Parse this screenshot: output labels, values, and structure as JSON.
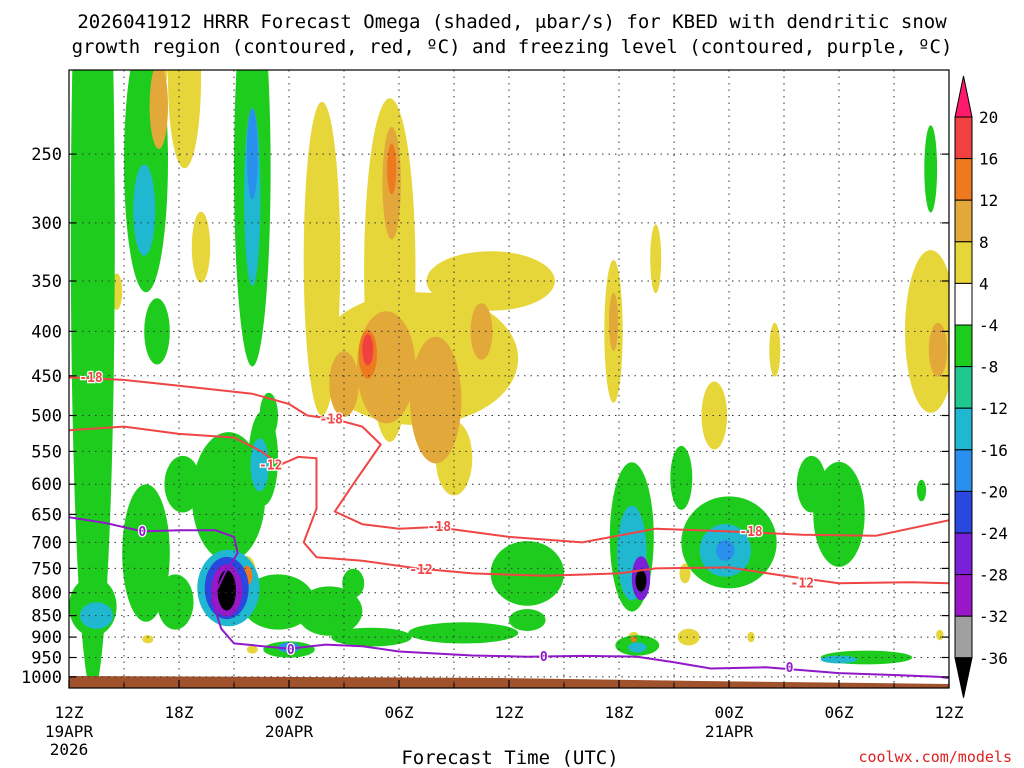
{
  "chart_data": {
    "type": "heatmap",
    "title_line1": "2026041912 HRRR Forecast Omega (shaded, μbar/s) for KBED with dendritic snow",
    "title_line2": "growth region (contoured, red, ºC) and freezing level (contoured, purple, ºC)",
    "xlabel": "Forecast Time (UTC)",
    "credit": "coolwx.com/models",
    "x_range_hours": [
      0,
      48
    ],
    "y_range_hpa": [
      200,
      1030
    ],
    "x_ticks": [
      {
        "h": 0,
        "label": "12Z",
        "sub1": "19APR",
        "sub2": "2026"
      },
      {
        "h": 6,
        "label": "18Z"
      },
      {
        "h": 12,
        "label": "00Z",
        "sub1": "20APR"
      },
      {
        "h": 18,
        "label": "06Z"
      },
      {
        "h": 24,
        "label": "12Z"
      },
      {
        "h": 30,
        "label": "18Z"
      },
      {
        "h": 36,
        "label": "00Z",
        "sub1": "21APR"
      },
      {
        "h": 42,
        "label": "06Z"
      },
      {
        "h": 48,
        "label": "12Z"
      }
    ],
    "y_ticks": [
      250,
      300,
      350,
      400,
      450,
      500,
      550,
      600,
      650,
      700,
      750,
      800,
      850,
      900,
      950,
      1000
    ],
    "colorbar": {
      "labels": [
        "20",
        "16",
        "12",
        "8",
        "4",
        "-4",
        "-8",
        "-12",
        "-16",
        "-20",
        "-24",
        "-28",
        "-32",
        "-36"
      ],
      "colors": [
        "#ff1a6e",
        "#f04040",
        "#ee7a20",
        "#e3a83a",
        "#e6d63a",
        "#ffffff",
        "#1ecc1e",
        "#20c890",
        "#20b8d0",
        "#2a90ee",
        "#2848e0",
        "#7a20d8",
        "#9818c8",
        "#a0a0a0",
        "#000000"
      ]
    },
    "contour_colors": {
      "dgz": "#f04545",
      "freezing": "#9018c8"
    },
    "dgz_contours": [
      {
        "label": "-18",
        "points": [
          [
            0,
            452
          ],
          [
            3,
            455
          ],
          [
            6,
            462
          ],
          [
            10,
            472
          ],
          [
            12,
            485
          ],
          [
            13,
            500
          ],
          [
            14.5,
            505
          ],
          [
            16,
            515
          ],
          [
            17,
            540
          ],
          [
            15.5,
            600
          ],
          [
            14.5,
            645
          ],
          [
            16,
            667
          ],
          [
            18,
            675
          ],
          [
            20,
            672
          ],
          [
            24,
            690
          ],
          [
            28,
            700
          ],
          [
            32,
            675
          ],
          [
            36,
            680
          ],
          [
            40,
            686
          ],
          [
            44,
            688
          ],
          [
            48,
            660
          ]
        ],
        "label_positions": [
          [
            1.2,
            452
          ],
          [
            14.3,
            505
          ],
          [
            20.2,
            671
          ],
          [
            37.2,
            680
          ]
        ]
      },
      {
        "label": "-12",
        "points": [
          [
            0,
            520
          ],
          [
            3,
            515
          ],
          [
            6,
            525
          ],
          [
            9,
            530
          ],
          [
            10.5,
            550
          ],
          [
            11.5,
            570
          ],
          [
            12.5,
            558
          ],
          [
            13.5,
            560
          ],
          [
            13.5,
            640
          ],
          [
            12.8,
            700
          ],
          [
            13.5,
            728
          ],
          [
            16,
            735
          ],
          [
            19,
            750
          ],
          [
            22,
            760
          ],
          [
            26,
            765
          ],
          [
            30,
            760
          ],
          [
            32,
            750
          ],
          [
            36,
            748
          ],
          [
            39,
            765
          ],
          [
            42,
            780
          ],
          [
            46,
            778
          ],
          [
            48,
            780
          ]
        ],
        "label_positions": [
          [
            11,
            570
          ],
          [
            19.2,
            752
          ],
          [
            40,
            780
          ]
        ]
      }
    ],
    "freezing_contours": [
      {
        "label": "0",
        "points": [
          [
            0,
            655
          ],
          [
            2,
            665
          ],
          [
            4,
            680
          ],
          [
            6,
            678
          ],
          [
            8,
            678
          ],
          [
            9,
            690
          ],
          [
            9.2,
            720
          ],
          [
            8.5,
            760
          ],
          [
            7.8,
            815
          ],
          [
            8.3,
            880
          ],
          [
            9,
            915
          ],
          [
            12,
            928
          ],
          [
            14,
            918
          ],
          [
            16,
            922
          ],
          [
            18,
            935
          ],
          [
            20,
            940
          ],
          [
            22,
            945
          ],
          [
            25,
            948
          ],
          [
            28,
            946
          ],
          [
            31,
            948
          ],
          [
            33,
            962
          ],
          [
            35,
            978
          ],
          [
            38,
            975
          ],
          [
            42,
            990
          ],
          [
            45,
            995
          ],
          [
            47.5,
            1000
          ],
          [
            48,
            1003
          ]
        ],
        "label_positions": [
          [
            4,
            680
          ],
          [
            12.1,
            930
          ],
          [
            25.9,
            948
          ],
          [
            39.3,
            975
          ]
        ]
      }
    ],
    "omega_blobs": [
      {
        "h": 1.3,
        "p": 310,
        "w": 1.2,
        "hp": 520,
        "v": -8
      },
      {
        "h": 4.2,
        "p": 255,
        "w": 1.2,
        "hp": 170,
        "v": -8
      },
      {
        "h": 4.1,
        "p": 290,
        "w": 0.6,
        "hp": 70,
        "v": -12
      },
      {
        "h": 4.8,
        "p": 400,
        "w": 0.7,
        "hp": 70,
        "v": -8
      },
      {
        "h": 10.0,
        "p": 260,
        "w": 1.0,
        "hp": 250,
        "v": -8
      },
      {
        "h": 10.0,
        "p": 280,
        "w": 0.45,
        "hp": 130,
        "v": -12
      },
      {
        "h": 10.0,
        "p": 250,
        "w": 0.3,
        "hp": 60,
        "v": -16
      },
      {
        "h": 4.6,
        "p": 180,
        "w": 0.9,
        "hp": 80,
        "v": 4
      },
      {
        "h": 4.9,
        "p": 220,
        "w": 0.5,
        "hp": 50,
        "v": 8
      },
      {
        "h": 6.3,
        "p": 205,
        "w": 0.9,
        "hp": 95,
        "v": 4
      },
      {
        "h": 7.2,
        "p": 320,
        "w": 0.5,
        "hp": 60,
        "v": 4
      },
      {
        "h": 2.6,
        "p": 360,
        "w": 0.3,
        "hp": 35,
        "v": 4
      },
      {
        "h": 13.8,
        "p": 330,
        "w": 1.0,
        "hp": 260,
        "v": 4
      },
      {
        "h": 17.5,
        "p": 340,
        "w": 1.4,
        "hp": 290,
        "v": 4
      },
      {
        "h": 17.6,
        "p": 270,
        "w": 0.5,
        "hp": 80,
        "v": 8
      },
      {
        "h": 17.6,
        "p": 260,
        "w": 0.25,
        "hp": 35,
        "v": 12
      },
      {
        "h": 19.0,
        "p": 430,
        "w": 5.5,
        "hp": 150,
        "v": 4
      },
      {
        "h": 23.0,
        "p": 350,
        "w": 3.5,
        "hp": 55,
        "v": 4
      },
      {
        "h": 17.3,
        "p": 440,
        "w": 1.6,
        "hp": 130,
        "v": 8
      },
      {
        "h": 20.0,
        "p": 480,
        "w": 1.4,
        "hp": 160,
        "v": 8
      },
      {
        "h": 16.3,
        "p": 425,
        "w": 0.5,
        "hp": 55,
        "v": 12
      },
      {
        "h": 16.3,
        "p": 420,
        "w": 0.3,
        "hp": 35,
        "v": 16
      },
      {
        "h": 15.0,
        "p": 460,
        "w": 0.8,
        "hp": 80,
        "v": 8
      },
      {
        "h": 22.5,
        "p": 400,
        "w": 0.6,
        "hp": 60,
        "v": 8
      },
      {
        "h": 21.0,
        "p": 560,
        "w": 1.0,
        "hp": 110,
        "v": 4
      },
      {
        "h": 29.7,
        "p": 400,
        "w": 0.5,
        "hp": 150,
        "v": 4
      },
      {
        "h": 29.7,
        "p": 390,
        "w": 0.25,
        "hp": 60,
        "v": 8
      },
      {
        "h": 32.0,
        "p": 330,
        "w": 0.3,
        "hp": 60,
        "v": 4
      },
      {
        "h": 35.2,
        "p": 500,
        "w": 0.7,
        "hp": 90,
        "v": 4
      },
      {
        "h": 38.5,
        "p": 420,
        "w": 0.3,
        "hp": 60,
        "v": 4
      },
      {
        "h": 47.0,
        "p": 400,
        "w": 1.4,
        "hp": 170,
        "v": 4
      },
      {
        "h": 47.4,
        "p": 420,
        "w": 0.5,
        "hp": 60,
        "v": 8
      },
      {
        "h": 4.2,
        "p": 720,
        "w": 1.3,
        "hp": 260,
        "v": -8
      },
      {
        "h": 1.3,
        "p": 700,
        "w": 0.7,
        "hp": 220,
        "v": -8
      },
      {
        "h": 1.3,
        "p": 830,
        "w": 1.3,
        "hp": 130,
        "v": -8
      },
      {
        "h": 1.5,
        "p": 850,
        "w": 0.9,
        "hp": 60,
        "v": -12
      },
      {
        "h": 5.8,
        "p": 820,
        "w": 1.0,
        "hp": 120,
        "v": -8
      },
      {
        "h": 6.2,
        "p": 600,
        "w": 1.0,
        "hp": 90,
        "v": -8
      },
      {
        "h": 8.7,
        "p": 620,
        "w": 2.0,
        "hp": 210,
        "v": -8
      },
      {
        "h": 8.7,
        "p": 790,
        "w": 1.7,
        "hp": 160,
        "v": -12
      },
      {
        "h": 8.6,
        "p": 790,
        "w": 1.2,
        "hp": 130,
        "v": -20
      },
      {
        "h": 8.6,
        "p": 795,
        "w": 0.85,
        "hp": 110,
        "v": -28
      },
      {
        "h": 8.6,
        "p": 795,
        "w": 0.5,
        "hp": 85,
        "v": -36
      },
      {
        "h": 10.6,
        "p": 560,
        "w": 0.8,
        "hp": 140,
        "v": -8
      },
      {
        "h": 10.4,
        "p": 570,
        "w": 0.5,
        "hp": 80,
        "v": -12
      },
      {
        "h": 11.4,
        "p": 820,
        "w": 2.0,
        "hp": 120,
        "v": -8
      },
      {
        "h": 12.0,
        "p": 930,
        "w": 1.4,
        "hp": 40,
        "v": -8
      },
      {
        "h": 12.0,
        "p": 925,
        "w": 0.6,
        "hp": 25,
        "v": -16
      },
      {
        "h": 10.9,
        "p": 500,
        "w": 0.5,
        "hp": 60,
        "v": -8
      },
      {
        "h": 14.2,
        "p": 840,
        "w": 1.8,
        "hp": 110,
        "v": -8
      },
      {
        "h": 15.5,
        "p": 780,
        "w": 0.6,
        "hp": 60,
        "v": -8
      },
      {
        "h": 16.5,
        "p": 900,
        "w": 2.2,
        "hp": 45,
        "v": -8
      },
      {
        "h": 21.5,
        "p": 890,
        "w": 3.0,
        "hp": 50,
        "v": -8
      },
      {
        "h": 25.0,
        "p": 760,
        "w": 2.0,
        "hp": 130,
        "v": -8
      },
      {
        "h": 25.0,
        "p": 860,
        "w": 1.0,
        "hp": 50,
        "v": -8
      },
      {
        "h": 30.7,
        "p": 690,
        "w": 1.2,
        "hp": 270,
        "v": -8
      },
      {
        "h": 30.7,
        "p": 720,
        "w": 0.8,
        "hp": 180,
        "v": -12
      },
      {
        "h": 31.2,
        "p": 770,
        "w": 0.5,
        "hp": 90,
        "v": -24
      },
      {
        "h": 31.2,
        "p": 775,
        "w": 0.3,
        "hp": 45,
        "v": -36
      },
      {
        "h": 31.0,
        "p": 920,
        "w": 1.2,
        "hp": 50,
        "v": -8
      },
      {
        "h": 31.0,
        "p": 925,
        "w": 0.5,
        "hp": 25,
        "v": -12
      },
      {
        "h": 33.4,
        "p": 590,
        "w": 0.6,
        "hp": 100,
        "v": -8
      },
      {
        "h": 36.0,
        "p": 700,
        "w": 2.6,
        "hp": 170,
        "v": -8
      },
      {
        "h": 35.8,
        "p": 715,
        "w": 1.4,
        "hp": 100,
        "v": -12
      },
      {
        "h": 35.8,
        "p": 715,
        "w": 0.5,
        "hp": 40,
        "v": -16
      },
      {
        "h": 42.0,
        "p": 650,
        "w": 1.4,
        "hp": 180,
        "v": -8
      },
      {
        "h": 40.5,
        "p": 600,
        "w": 0.8,
        "hp": 90,
        "v": -8
      },
      {
        "h": 43.5,
        "p": 950,
        "w": 2.5,
        "hp": 35,
        "v": -8
      },
      {
        "h": 42.0,
        "p": 955,
        "w": 1.0,
        "hp": 20,
        "v": -12
      },
      {
        "h": 46.5,
        "p": 610,
        "w": 0.25,
        "hp": 35,
        "v": -8
      },
      {
        "h": 47.0,
        "p": 260,
        "w": 0.35,
        "hp": 60,
        "v": -8
      },
      {
        "h": 9.7,
        "p": 760,
        "w": 0.5,
        "hp": 70,
        "v": 4
      },
      {
        "h": 9.7,
        "p": 765,
        "w": 0.3,
        "hp": 40,
        "v": 12
      },
      {
        "h": 4.3,
        "p": 905,
        "w": 0.3,
        "hp": 20,
        "v": 4
      },
      {
        "h": 10.0,
        "p": 930,
        "w": 0.3,
        "hp": 20,
        "v": 4
      },
      {
        "h": 30.8,
        "p": 900,
        "w": 0.3,
        "hp": 25,
        "v": 4
      },
      {
        "h": 30.8,
        "p": 905,
        "w": 0.15,
        "hp": 12,
        "v": 12
      },
      {
        "h": 33.8,
        "p": 900,
        "w": 0.6,
        "hp": 40,
        "v": 4
      },
      {
        "h": 33.6,
        "p": 760,
        "w": 0.3,
        "hp": 40,
        "v": 4
      },
      {
        "h": 37.2,
        "p": 900,
        "w": 0.2,
        "hp": 25,
        "v": 4
      },
      {
        "h": 47.5,
        "p": 895,
        "w": 0.2,
        "hp": 25,
        "v": 4
      }
    ]
  }
}
